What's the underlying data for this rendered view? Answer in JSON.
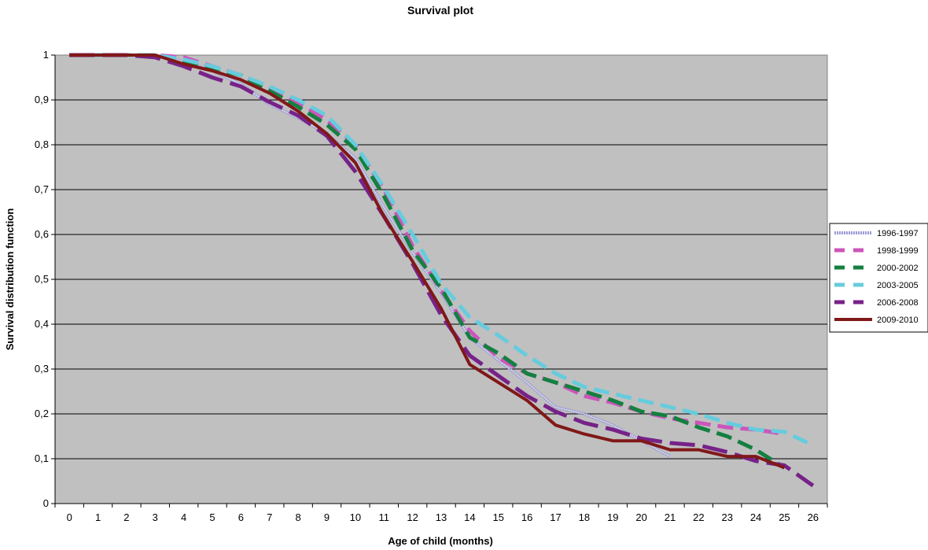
{
  "chart_data": {
    "type": "line",
    "title": "Survival plot",
    "xlabel": "Age of child (months)",
    "ylabel": "Survival distribution function",
    "xlim": [
      0,
      26
    ],
    "ylim": [
      0,
      1
    ],
    "x_ticks": [
      "0",
      "1",
      "2",
      "3",
      "4",
      "5",
      "6",
      "7",
      "8",
      "9",
      "10",
      "11",
      "12",
      "13",
      "14",
      "15",
      "16",
      "17",
      "18",
      "19",
      "20",
      "21",
      "22",
      "23",
      "24",
      "25",
      "26"
    ],
    "y_ticks": [
      "0",
      "0,1",
      "0,2",
      "0,3",
      "0,4",
      "0,5",
      "0,6",
      "0,7",
      "0,8",
      "0,9",
      "1"
    ],
    "grid": true,
    "legend_position": "right",
    "plot_background": "#c0c0c0",
    "series": [
      {
        "name": "1996-1997",
        "color": "#9a9ad8",
        "style": "hatched",
        "points": [
          [
            0,
            1
          ],
          [
            1,
            1
          ],
          [
            2,
            1
          ],
          [
            3,
            1
          ],
          [
            4,
            0.985
          ],
          [
            5,
            0.965
          ],
          [
            6,
            0.935
          ],
          [
            7,
            0.89
          ],
          [
            8,
            0.86
          ],
          [
            9,
            0.825
          ],
          [
            10,
            0.77
          ],
          [
            11,
            0.66
          ],
          [
            12,
            0.56
          ],
          [
            13,
            0.47
          ],
          [
            14,
            0.37
          ],
          [
            15,
            0.32
          ],
          [
            16,
            0.27
          ],
          [
            17,
            0.215
          ],
          [
            18,
            0.2
          ],
          [
            19,
            0.175
          ],
          [
            20,
            0.14
          ],
          [
            21,
            0.105
          ]
        ]
      },
      {
        "name": "1998-1999",
        "color": "#cc55bb",
        "style": "dash",
        "points": [
          [
            0,
            1
          ],
          [
            1,
            1
          ],
          [
            2,
            1
          ],
          [
            3,
            1
          ],
          [
            4,
            0.995
          ],
          [
            5,
            0.975
          ],
          [
            6,
            0.955
          ],
          [
            7,
            0.925
          ],
          [
            8,
            0.895
          ],
          [
            9,
            0.855
          ],
          [
            10,
            0.8
          ],
          [
            11,
            0.7
          ],
          [
            12,
            0.575
          ],
          [
            13,
            0.475
          ],
          [
            14,
            0.385
          ],
          [
            15,
            0.325
          ],
          [
            16,
            0.29
          ],
          [
            17,
            0.27
          ],
          [
            18,
            0.24
          ],
          [
            19,
            0.225
          ],
          [
            20,
            0.205
          ],
          [
            21,
            0.19
          ],
          [
            22,
            0.18
          ],
          [
            23,
            0.17
          ],
          [
            24,
            0.165
          ],
          [
            25,
            0.155
          ]
        ]
      },
      {
        "name": "2000-2002",
        "color": "#148040",
        "style": "dash",
        "points": [
          [
            0,
            1
          ],
          [
            1,
            1
          ],
          [
            2,
            1
          ],
          [
            3,
            1
          ],
          [
            4,
            0.985
          ],
          [
            5,
            0.97
          ],
          [
            6,
            0.955
          ],
          [
            7,
            0.92
          ],
          [
            8,
            0.885
          ],
          [
            9,
            0.845
          ],
          [
            10,
            0.79
          ],
          [
            11,
            0.685
          ],
          [
            12,
            0.565
          ],
          [
            13,
            0.48
          ],
          [
            14,
            0.37
          ],
          [
            15,
            0.335
          ],
          [
            16,
            0.29
          ],
          [
            17,
            0.27
          ],
          [
            18,
            0.25
          ],
          [
            19,
            0.23
          ],
          [
            20,
            0.205
          ],
          [
            21,
            0.195
          ],
          [
            22,
            0.17
          ],
          [
            23,
            0.15
          ],
          [
            24,
            0.12
          ],
          [
            25,
            0.08
          ]
        ]
      },
      {
        "name": "2003-2005",
        "color": "#66ccdd",
        "style": "dash",
        "points": [
          [
            0,
            1
          ],
          [
            1,
            1
          ],
          [
            2,
            1
          ],
          [
            3,
            1
          ],
          [
            4,
            0.99
          ],
          [
            5,
            0.975
          ],
          [
            6,
            0.955
          ],
          [
            7,
            0.93
          ],
          [
            8,
            0.9
          ],
          [
            9,
            0.865
          ],
          [
            10,
            0.8
          ],
          [
            11,
            0.705
          ],
          [
            12,
            0.6
          ],
          [
            13,
            0.49
          ],
          [
            14,
            0.415
          ],
          [
            15,
            0.375
          ],
          [
            16,
            0.33
          ],
          [
            17,
            0.29
          ],
          [
            18,
            0.26
          ],
          [
            19,
            0.245
          ],
          [
            20,
            0.23
          ],
          [
            21,
            0.215
          ],
          [
            22,
            0.2
          ],
          [
            23,
            0.18
          ],
          [
            24,
            0.165
          ],
          [
            25,
            0.16
          ],
          [
            26,
            0.13
          ]
        ]
      },
      {
        "name": "2006-2008",
        "color": "#772288",
        "style": "long-dash",
        "points": [
          [
            0,
            1
          ],
          [
            1,
            1
          ],
          [
            2,
            1
          ],
          [
            3,
            0.995
          ],
          [
            4,
            0.975
          ],
          [
            5,
            0.95
          ],
          [
            6,
            0.93
          ],
          [
            7,
            0.895
          ],
          [
            8,
            0.865
          ],
          [
            9,
            0.82
          ],
          [
            10,
            0.74
          ],
          [
            11,
            0.64
          ],
          [
            12,
            0.535
          ],
          [
            13,
            0.42
          ],
          [
            14,
            0.33
          ],
          [
            15,
            0.285
          ],
          [
            16,
            0.24
          ],
          [
            17,
            0.205
          ],
          [
            18,
            0.18
          ],
          [
            19,
            0.165
          ],
          [
            20,
            0.145
          ],
          [
            21,
            0.135
          ],
          [
            22,
            0.13
          ],
          [
            23,
            0.115
          ],
          [
            24,
            0.095
          ],
          [
            25,
            0.085
          ],
          [
            26,
            0.04
          ]
        ]
      },
      {
        "name": "2009-2010",
        "color": "#801818",
        "style": "solid",
        "points": [
          [
            0,
            1
          ],
          [
            1,
            1
          ],
          [
            2,
            1
          ],
          [
            3,
            1
          ],
          [
            4,
            0.98
          ],
          [
            5,
            0.965
          ],
          [
            6,
            0.945
          ],
          [
            7,
            0.915
          ],
          [
            8,
            0.875
          ],
          [
            9,
            0.825
          ],
          [
            10,
            0.76
          ],
          [
            11,
            0.64
          ],
          [
            12,
            0.54
          ],
          [
            13,
            0.435
          ],
          [
            14,
            0.31
          ],
          [
            15,
            0.27
          ],
          [
            16,
            0.23
          ],
          [
            17,
            0.175
          ],
          [
            18,
            0.155
          ],
          [
            19,
            0.14
          ],
          [
            20,
            0.14
          ],
          [
            21,
            0.12
          ],
          [
            22,
            0.12
          ],
          [
            23,
            0.105
          ],
          [
            24,
            0.105
          ],
          [
            25,
            0.08
          ]
        ]
      }
    ]
  }
}
